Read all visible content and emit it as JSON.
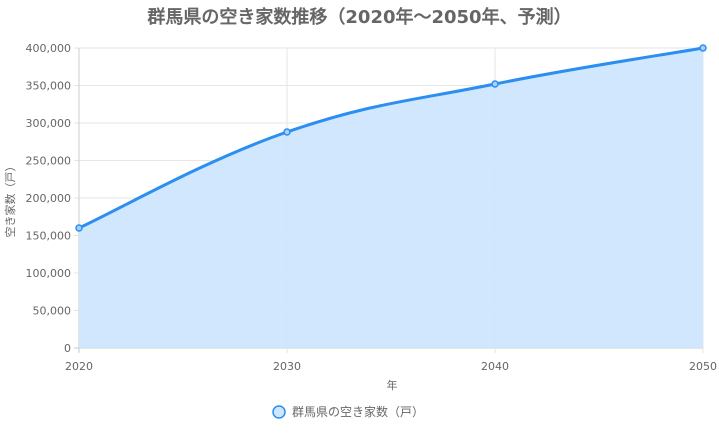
{
  "chart_data": {
    "type": "area",
    "title": "群馬県の空き家数推移（2020年～2050年、予測）",
    "xlabel": "年",
    "ylabel": "空き家数（戸）",
    "x": [
      2020,
      2030,
      2040,
      2050
    ],
    "x_tick_labels": [
      "2020",
      "2030",
      "2040",
      "2050"
    ],
    "series": [
      {
        "name": "群馬県の空き家数（戸）",
        "values": [
          160000,
          288000,
          352000,
          400000
        ]
      }
    ],
    "ylim": [
      0,
      400000
    ],
    "y_ticks": [
      0,
      50000,
      100000,
      150000,
      200000,
      250000,
      300000,
      350000,
      400000
    ],
    "y_tick_labels": [
      "0",
      "50,000",
      "100,000",
      "150,000",
      "200,000",
      "250,000",
      "300,000",
      "350,000",
      "400,000"
    ],
    "grid": true,
    "legend_position": "bottom",
    "colors": {
      "line": "#2b8ef0",
      "fill": "#cfe6fd",
      "point_fill": "#a6d1fb",
      "grid": "#e6e6e6",
      "text": "#666666"
    }
  }
}
